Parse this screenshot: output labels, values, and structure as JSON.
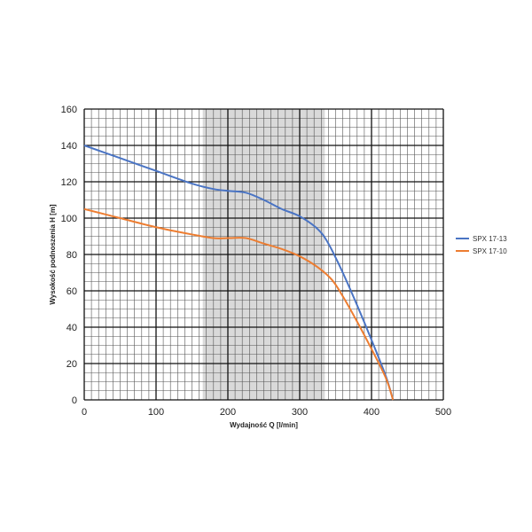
{
  "chart_data": {
    "type": "line",
    "xlabel": "Wydajność Q [l/min]",
    "ylabel": "Wysokość podnoszenia H [m]",
    "xlim": [
      0,
      500
    ],
    "ylim": [
      0,
      160
    ],
    "x_ticks": [
      0,
      100,
      200,
      300,
      400,
      500
    ],
    "y_ticks": [
      0,
      20,
      40,
      60,
      80,
      100,
      120,
      140,
      160
    ],
    "grid": true,
    "highlight_band_x": [
      165,
      335
    ],
    "highlight_color": "#d9d9d9",
    "legend_position": "right",
    "series": [
      {
        "name": "SPX 17-13",
        "color": "#4a74c4",
        "points": [
          [
            0,
            140
          ],
          [
            50,
            133
          ],
          [
            100,
            126
          ],
          [
            150,
            119
          ],
          [
            180,
            116
          ],
          [
            200,
            115
          ],
          [
            225,
            114
          ],
          [
            250,
            110
          ],
          [
            275,
            105
          ],
          [
            300,
            101
          ],
          [
            325,
            94
          ],
          [
            340,
            86
          ],
          [
            360,
            70
          ],
          [
            380,
            52
          ],
          [
            400,
            33
          ],
          [
            420,
            13
          ],
          [
            430,
            0
          ]
        ]
      },
      {
        "name": "SPX 17-10",
        "color": "#ed7d31",
        "points": [
          [
            0,
            105
          ],
          [
            50,
            100
          ],
          [
            100,
            95
          ],
          [
            150,
            91
          ],
          [
            180,
            89
          ],
          [
            200,
            89
          ],
          [
            225,
            89
          ],
          [
            250,
            86
          ],
          [
            275,
            83
          ],
          [
            300,
            79
          ],
          [
            325,
            73
          ],
          [
            345,
            66
          ],
          [
            360,
            57
          ],
          [
            380,
            43
          ],
          [
            400,
            28
          ],
          [
            420,
            12
          ],
          [
            430,
            0
          ]
        ]
      }
    ]
  }
}
